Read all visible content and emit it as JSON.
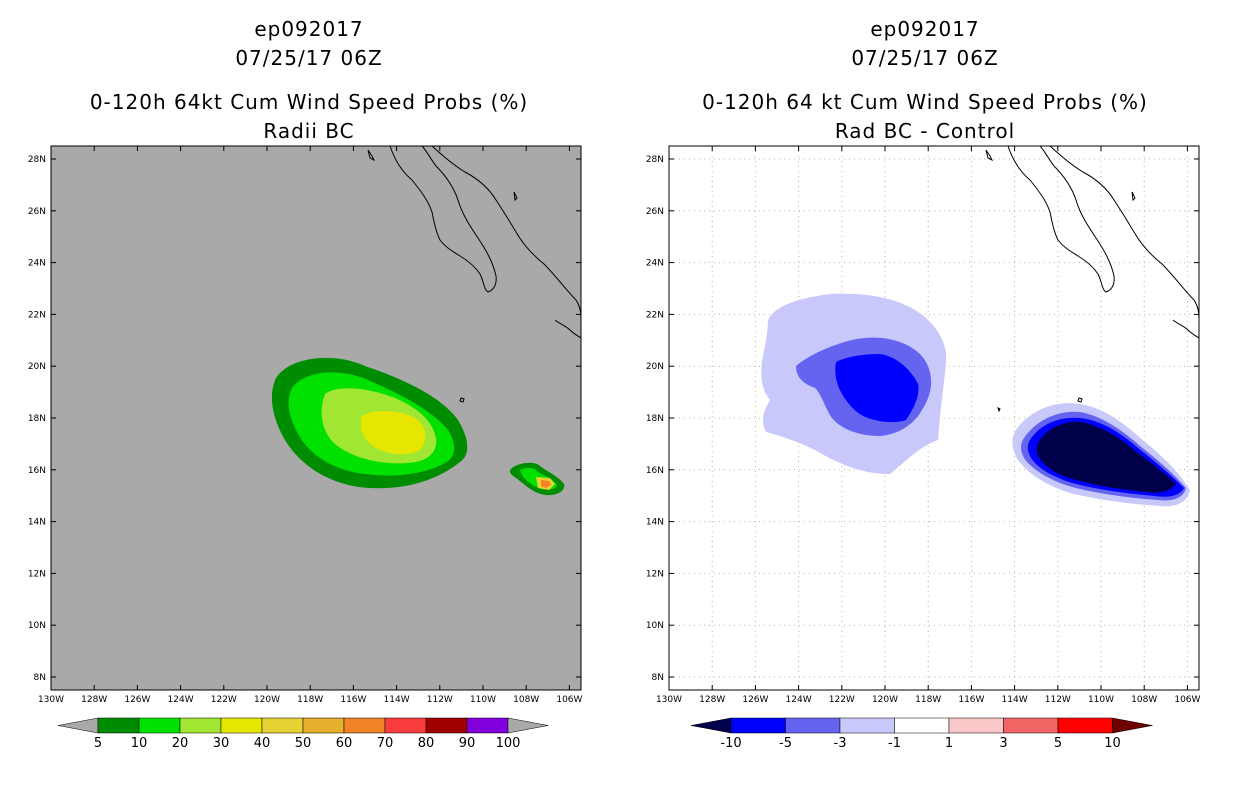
{
  "left_panel": {
    "title_line1": "ep092017",
    "title_line2": "07/25/17 06Z",
    "title_line3": "0-120h 64kt Cum Wind Speed Probs (%)",
    "title_line4": "Radii BC",
    "background_color": "#a9a9a9",
    "colorbar": {
      "colors": [
        "#008c00",
        "#00e100",
        "#a0e632",
        "#e6e600",
        "#e6d232",
        "#e6af2d",
        "#f08228",
        "#fa3c3c",
        "#a00000",
        "#8200dc"
      ],
      "labels": [
        "5",
        "10",
        "20",
        "30",
        "40",
        "50",
        "60",
        "70",
        "80",
        "90",
        "100"
      ],
      "end_color": "#a9a9a9"
    }
  },
  "right_panel": {
    "title_line1": "ep092017",
    "title_line2": "07/25/17 06Z",
    "title_line3": "0-120h 64 kt Cum Wind Speed Probs (%)",
    "title_line4": "Rad BC - Control",
    "background_color": "#ffffff",
    "colorbar": {
      "colors": [
        "#0000ff",
        "#6464f0",
        "#c8c8fa",
        "#ffffff",
        "#fac8c8",
        "#f06464",
        "#ff0000"
      ],
      "labels": [
        "-10",
        "-5",
        "-3",
        "-1",
        "1",
        "3",
        "5",
        "10"
      ],
      "end_low_color": "#00004b",
      "end_high_color": "#6e0000"
    }
  },
  "axes": {
    "lat_labels": [
      "28N",
      "26N",
      "24N",
      "22N",
      "20N",
      "18N",
      "16N",
      "14N",
      "12N",
      "10N",
      "8N"
    ],
    "lon_labels": [
      "130W",
      "128W",
      "126W",
      "124W",
      "122W",
      "120W",
      "118W",
      "116W",
      "114W",
      "112W",
      "110W",
      "108W",
      "106W"
    ]
  },
  "chart_data": [
    {
      "type": "filled-contour-map",
      "title": "0-120h 64kt Cum Wind Speed Probs (%) - Radii BC",
      "storm": "ep092017",
      "valid_time": "07/25/17 06Z",
      "lon_range": [
        -130,
        -105.5
      ],
      "lat_range": [
        7.5,
        28.5
      ],
      "contour_levels": [
        5,
        10,
        20,
        30,
        40,
        50,
        60,
        70,
        80,
        90,
        100
      ],
      "features": [
        {
          "name": "main-swath",
          "center_lon": -114.5,
          "center_lat": 17.5,
          "max_prob_bin": "30-40"
        },
        {
          "name": "east-blob",
          "center_lon": -107.0,
          "center_lat": 15.5,
          "max_prob_bin": "50-60"
        }
      ]
    },
    {
      "type": "filled-contour-map",
      "title": "0-120h 64 kt Cum Wind Speed Probs (%) - Rad BC - Control",
      "storm": "ep092017",
      "valid_time": "07/25/17 06Z",
      "lon_range": [
        -130,
        -105.5
      ],
      "lat_range": [
        7.5,
        28.5
      ],
      "contour_levels": [
        -10,
        -5,
        -3,
        -1,
        1,
        3,
        5,
        10
      ],
      "features": [
        {
          "name": "west-negative",
          "center_lon": -120.5,
          "center_lat": 19.0,
          "min_diff_bin": "-10 to -5"
        },
        {
          "name": "east-negative",
          "center_lon": -110.0,
          "center_lat": 16.3,
          "min_diff_bin": "< -10"
        }
      ]
    }
  ]
}
